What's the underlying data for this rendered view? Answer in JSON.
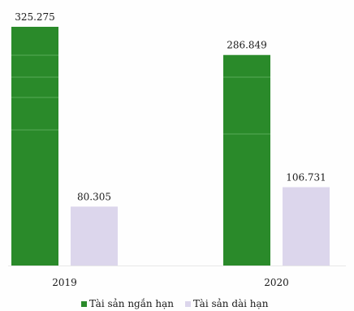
{
  "chart_data": {
    "type": "bar",
    "categories": [
      "2019",
      "2020"
    ],
    "series": [
      {
        "name": "Tài sản ngắn hạn",
        "color": "#2a8a2a",
        "values": [
          325.275,
          286.849
        ],
        "labels": [
          "325.275",
          "286.849"
        ]
      },
      {
        "name": "Tài sản dài hạn",
        "color": "#dcd6ec",
        "values": [
          80.305,
          106.731
        ],
        "labels": [
          "80.305",
          "106.731"
        ]
      }
    ],
    "title": "",
    "xlabel": "",
    "ylabel": "",
    "ylim": [
      0,
      325.275
    ],
    "grid": false,
    "legend": "bottom-center"
  }
}
